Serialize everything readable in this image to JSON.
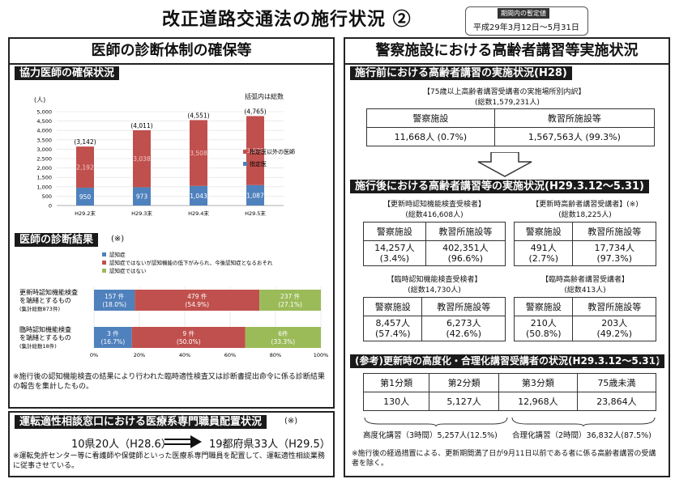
{
  "title": "改正道路交通法の施行状況 ②",
  "period": {
    "label": "期間内の暫定値",
    "dates": "平成29年3月12日～5月31日"
  },
  "left": {
    "heading": "医師の診断体制の確保等",
    "cooperating": {
      "header": "協力医師の確保状況",
      "unit": "(人)",
      "legend_note": "括弧内は総数",
      "chart_data": {
        "type": "bar",
        "categories": [
          "H29.2末",
          "H29.3末",
          "H29.4末",
          "H29.5末"
        ],
        "totals": [
          "(3,142)",
          "(4,011)",
          "(4,551)",
          "(4,765)"
        ],
        "series": [
          {
            "name": "指定医",
            "color": "#4f81bd",
            "values": [
              950,
              973,
              1043,
              1087
            ],
            "labels": [
              "950",
              "973",
              "1,043",
              "1,087"
            ]
          },
          {
            "name": "指定医以外の医師",
            "color": "#c0504d",
            "values": [
              2192,
              3038,
              3508,
              3678
            ],
            "labels": [
              "2,192",
              "3,038",
              "3,508",
              "3,678"
            ]
          }
        ],
        "yticks": [
          "0",
          "500",
          "1,000",
          "1,500",
          "2,000",
          "2,500",
          "3,000",
          "3,500",
          "4,000",
          "4,500",
          "5,000"
        ],
        "ylim": [
          0,
          5000
        ]
      }
    },
    "diagnosis": {
      "header": "医師の診断結果",
      "mark": "(※)",
      "legend": [
        {
          "name": "認知症",
          "color": "#4f81bd"
        },
        {
          "name": "認知症ではないが認知機能の低下がみられ、今後認知症となるおそれ",
          "color": "#c0504d"
        },
        {
          "name": "認知症ではない",
          "color": "#9bbb59"
        }
      ],
      "chart_data": {
        "type": "bar",
        "rows": [
          {
            "label1": "更新時認知機能検査",
            "label2": "を端緒とするもの",
            "label3": "(集計総数873件)",
            "segments": [
              {
                "value": 18.0,
                "count": "157 件",
                "pct": "(18.0%)",
                "color": "#4f81bd"
              },
              {
                "value": 54.9,
                "count": "479 件",
                "pct": "(54.9%)",
                "color": "#c0504d"
              },
              {
                "value": 27.1,
                "count": "237 件",
                "pct": "(27.1%)",
                "color": "#9bbb59"
              }
            ]
          },
          {
            "label1": "臨時認知機能検査",
            "label2": "を端緒とするもの",
            "label3": "(集計総数18件)",
            "segments": [
              {
                "value": 16.7,
                "count": "3 件",
                "pct": "(16.7%)",
                "color": "#4f81bd"
              },
              {
                "value": 50.0,
                "count": "9 件",
                "pct": "(50.0%)",
                "color": "#c0504d"
              },
              {
                "value": 33.3,
                "count": "6件",
                "pct": "(33.3%)",
                "color": "#9bbb59"
              }
            ]
          }
        ],
        "xticks": [
          "0%",
          "20%",
          "40%",
          "60%",
          "80%",
          "100%"
        ]
      },
      "note": "※施行後の認知機能検査の結果により行われた臨時適性検査又は診断書提出命令に係る診断結果の報告を集計したもの。"
    },
    "staff": {
      "header": "運転適性相談窓口における医療系専門職員配置状況",
      "mark": "(※)",
      "before": "10県20人（H28.6）",
      "after": "19都府県33人（H29.5）",
      "note": "※運転免許センター等に看護師や保健師といった医療系専門職員を配置して、運転適性相談業務に従事させている。"
    }
  },
  "right": {
    "heading": "警察施設における高齢者講習等実施状況",
    "before": {
      "header": "施行前における高齢者講習の実施状況(H28)",
      "caption1": "【75歳以上高齢者講習受講者の実施場所別内訳】",
      "caption2": "(総数1,579,231人)",
      "cols": [
        "警察施設",
        "教習所施設等"
      ],
      "vals": [
        "11,668人 (0.7%)",
        "1,567,563人 (99.3%)"
      ]
    },
    "after": {
      "header": "施行後における高齢者講習等の実施状況(H29.3.12～5.31)",
      "blocks": [
        {
          "t1": "【更新時認知機能検査受検者】",
          "mark": "",
          "t2": "(総数416,608人)",
          "cols": [
            "警察施設",
            "教習所施設等"
          ],
          "v1": [
            "14,257人",
            "402,351人"
          ],
          "v2": [
            "(3.4%)",
            "(96.6%)"
          ]
        },
        {
          "t1": "【更新時高齢者講習受講者】",
          "mark": "(※)",
          "t2": "(総数18,225人)",
          "cols": [
            "警察施設",
            "教習所施設等"
          ],
          "v1": [
            "491人",
            "17,734人"
          ],
          "v2": [
            "(2.7%)",
            "(97.3%)"
          ]
        },
        {
          "t1": "【臨時認知機能検査受検者】",
          "mark": "",
          "t2": "(総数14,730人)",
          "cols": [
            "警察施設",
            "教習所施設等"
          ],
          "v1": [
            "8,457人",
            "6,273人"
          ],
          "v2": [
            "(57.4%)",
            "(42.6%)"
          ]
        },
        {
          "t1": "【臨時高齢者講習受講者】",
          "mark": "",
          "t2": "(総数413人)",
          "cols": [
            "警察施設",
            "教習所施設等"
          ],
          "v1": [
            "210人",
            "203人"
          ],
          "v2": [
            "(50.8%)",
            "(49.2%)"
          ]
        }
      ]
    },
    "reference": {
      "header": "(参考)更新時の高度化・合理化講習受講者の状況(H29.3.12～5.31)",
      "mark": "(※)",
      "cols": [
        "第1分類",
        "第2分類",
        "第3分類",
        "75歳未満"
      ],
      "vals": [
        "130人",
        "5,127人",
        "12,968人",
        "23,864人"
      ],
      "advanced": "高度化講習（3時間）5,257人(12.5%)",
      "rational": "合理化講習（2時間）36,832人(87.5%)",
      "note": "※施行後の経過措置による、更新期間満了日が9月11日以前である者に係る高齢者講習の受講者を除く。"
    }
  }
}
